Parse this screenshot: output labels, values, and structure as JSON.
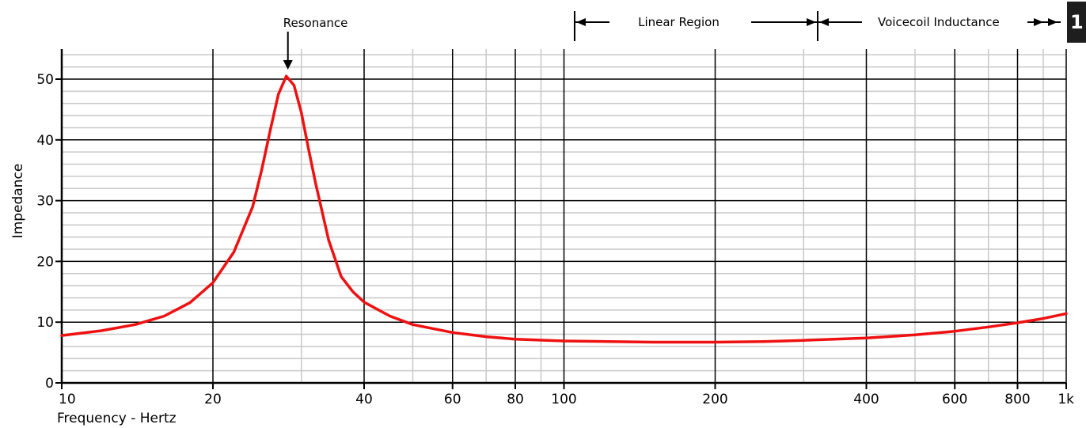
{
  "chart_data": {
    "type": "line",
    "title": "",
    "xlabel": "Frequency - Hertz",
    "ylabel": "Impedance",
    "x_scale": "log",
    "xlim": [
      10,
      1000
    ],
    "ylim": [
      0,
      55
    ],
    "grid": true,
    "x_ticks": [
      {
        "value": 10,
        "label": "10"
      },
      {
        "value": 20,
        "label": "20"
      },
      {
        "value": 40,
        "label": "40"
      },
      {
        "value": 60,
        "label": "60"
      },
      {
        "value": 80,
        "label": "80"
      },
      {
        "value": 100,
        "label": "100"
      },
      {
        "value": 200,
        "label": "200"
      },
      {
        "value": 400,
        "label": "400"
      },
      {
        "value": 600,
        "label": "600"
      },
      {
        "value": 800,
        "label": "800"
      },
      {
        "value": 1000,
        "label": "1k"
      }
    ],
    "y_ticks": [
      {
        "value": 0,
        "label": "0"
      },
      {
        "value": 10,
        "label": "10"
      },
      {
        "value": 20,
        "label": "20"
      },
      {
        "value": 30,
        "label": "30"
      },
      {
        "value": 40,
        "label": "40"
      },
      {
        "value": 50,
        "label": "50"
      }
    ],
    "series": [
      {
        "color": "#ee1111",
        "x": [
          10,
          12,
          14,
          16,
          18,
          20,
          22,
          24,
          25,
          26,
          27,
          28,
          29,
          30,
          31,
          32,
          34,
          36,
          38,
          40,
          45,
          50,
          60,
          70,
          80,
          100,
          150,
          200,
          250,
          300,
          400,
          500,
          600,
          700,
          800,
          900,
          1000
        ],
        "y": [
          7.8,
          8.6,
          9.6,
          11.0,
          13.2,
          16.5,
          21.5,
          29.0,
          35.0,
          41.5,
          47.5,
          50.5,
          49.0,
          44.5,
          38.5,
          33.0,
          23.5,
          17.5,
          15.0,
          13.3,
          11.0,
          9.6,
          8.3,
          7.6,
          7.2,
          6.9,
          6.7,
          6.7,
          6.8,
          7.0,
          7.4,
          7.9,
          8.5,
          9.2,
          9.9,
          10.6,
          11.4
        ]
      }
    ],
    "annotations": [
      {
        "label": "Resonance",
        "x": 28
      },
      {
        "label": "Linear Region",
        "x_range": [
          105,
          320
        ]
      },
      {
        "label": "Voicecoil Inductance",
        "x_range": [
          320,
          1000
        ]
      }
    ]
  },
  "corner_badge": {
    "text": "1"
  }
}
